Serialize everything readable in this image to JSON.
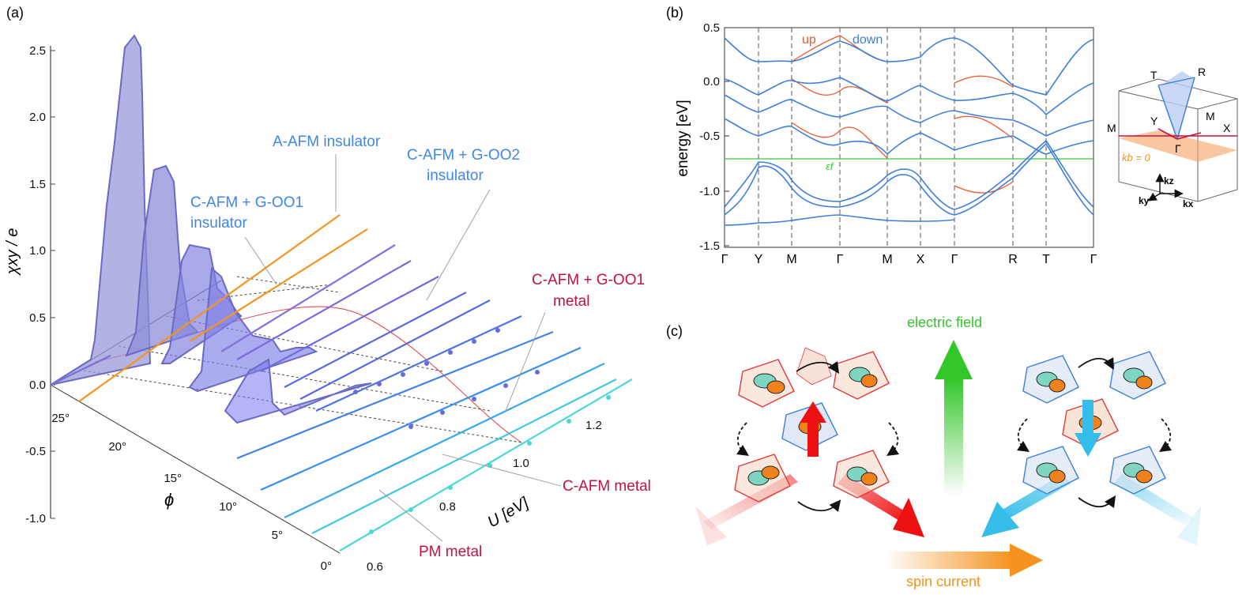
{
  "panels": {
    "a": {
      "label": "(a)",
      "y_axis_label": "χxy / e",
      "y_ticks": [
        "2.5",
        "2.0",
        "1.5",
        "1.0",
        "0.5",
        "0.0",
        "-0.5",
        "-1.0"
      ],
      "phi_axis_label": "ϕ",
      "phi_ticks": [
        "25°",
        "20°",
        "15°",
        "10°",
        "5°",
        "0°"
      ],
      "u_axis_label": "U [eV]",
      "u_ticks": [
        "0.6",
        "0.8",
        "1.0",
        "1.2"
      ],
      "annotations": {
        "a_afm_ins": "A-AFM insulator",
        "c_afm_goo2_l1": "C-AFM + G-OO2",
        "c_afm_goo2_l2": "insulator",
        "c_afm_goo1_ins_l1": "C-AFM + G-OO1",
        "c_afm_goo1_ins_l2": "insulator",
        "c_afm_goo1_met_l1": "C-AFM + G-OO1",
        "c_afm_goo1_met_l2": "metal",
        "c_afm_metal": "C-AFM metal",
        "pm_metal": "PM metal"
      },
      "colors": {
        "insulator_label": "#3f86e6",
        "metal_label": "#c3123f",
        "fill": "#8c8cd8"
      }
    },
    "b": {
      "label": "(b)",
      "y_axis_label": "energy [eV]",
      "y_ticks": [
        "0.5",
        "0.0",
        "-0.5",
        "-1.0",
        "-1.5"
      ],
      "k_path": [
        "Γ",
        "Y",
        "M",
        "Γ",
        "M",
        "X",
        "Γ",
        "R",
        "T",
        "Γ"
      ],
      "legend_up": "up",
      "legend_down": "down",
      "fermi_label": "εf",
      "bz_labels": {
        "T": "T",
        "R": "R",
        "Y": "Y",
        "M_left": "M",
        "M_right": "M",
        "X": "X",
        "G": "Γ",
        "kb": "kb = 0",
        "kz": "kz",
        "ky": "ky",
        "kx": "kx"
      },
      "colors": {
        "up": "#ec5a2c",
        "down": "#3e7fdc",
        "fermi": "#3ec83a"
      }
    },
    "c": {
      "label": "(c)",
      "electric_field": "electric field",
      "spin_current": "spin current",
      "colors": {
        "field": "#33c62a",
        "spin": "#f5931f",
        "up_arrow": "#ee1111",
        "down_arrow": "#33bde8"
      }
    }
  }
}
